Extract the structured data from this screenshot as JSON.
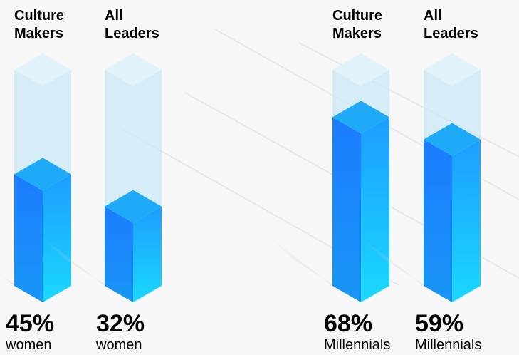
{
  "chart_data": [
    {
      "type": "bar",
      "categories": [
        "Culture Makers",
        "All Leaders"
      ],
      "values": [
        45,
        32
      ],
      "value_labels": [
        "45%",
        "32%"
      ],
      "annotation": "women",
      "color": "#1a8cff"
    },
    {
      "type": "bar",
      "categories": [
        "Culture Makers",
        "All Leaders"
      ],
      "values": [
        68,
        59
      ],
      "value_labels": [
        "68%",
        "59%"
      ],
      "annotation": "Millennials",
      "color": "#1a8cff"
    }
  ]
}
